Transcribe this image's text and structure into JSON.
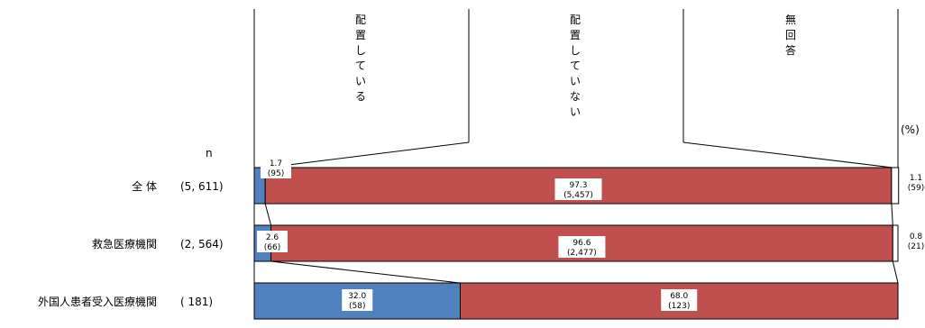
{
  "chart_data": {
    "type": "bar",
    "stacked": true,
    "orientation": "horizontal",
    "unit_label": "(%)",
    "n_header": "n",
    "categories": [
      "全 体",
      "救急医療機関",
      "外国人患者受入医療機関"
    ],
    "n_values": [
      "(5, 611)",
      "(2, 564)",
      "(  181)"
    ],
    "series": [
      {
        "name": "配置している",
        "color": "#4f81bd",
        "values": [
          1.7,
          2.6,
          32.0
        ],
        "value_labels": [
          "1.7",
          "2.6",
          "32.0"
        ],
        "count_labels": [
          "(95)",
          "(66)",
          "(58)"
        ]
      },
      {
        "name": "配置していない",
        "color": "#c0504d",
        "values": [
          97.3,
          96.6,
          68.0
        ],
        "value_labels": [
          "97.3",
          "96.6",
          "68.0"
        ],
        "count_labels": [
          "(5,457)",
          "(2,477)",
          "(123)"
        ]
      },
      {
        "name": "無回答",
        "color": "#ffffff",
        "values": [
          1.1,
          0.8,
          0.0
        ],
        "value_labels": [
          "1.1",
          "0.8",
          ""
        ],
        "count_labels": [
          "(59)",
          "(21)",
          ""
        ]
      }
    ],
    "xlim": [
      0,
      100
    ]
  }
}
